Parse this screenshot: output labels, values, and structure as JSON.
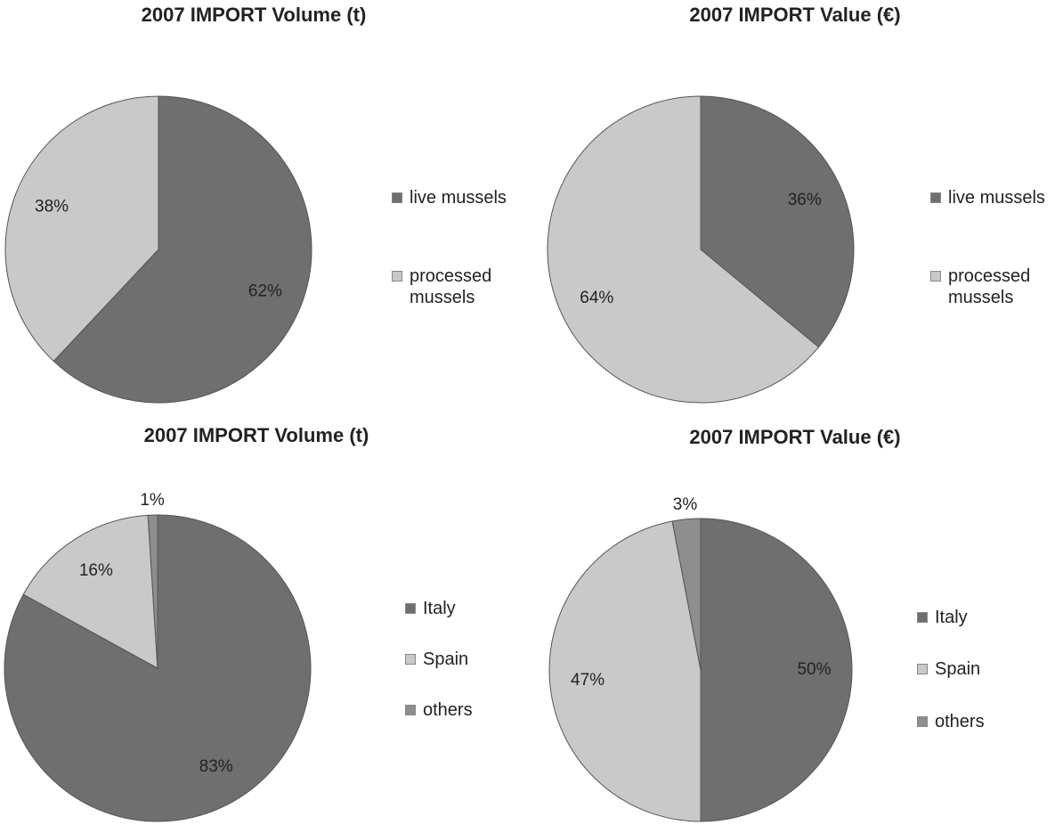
{
  "chart_data": [
    {
      "type": "pie",
      "title": "2007 IMPORT Volume (t)",
      "categories": [
        "live mussels",
        "processed mussels"
      ],
      "values": [
        62,
        38
      ],
      "colors": [
        "#6f6f6f",
        "#c9c9c9"
      ],
      "legend": "right"
    },
    {
      "type": "pie",
      "title": "2007 IMPORT Value (€)",
      "categories": [
        "live mussels",
        "processed mussels"
      ],
      "values": [
        36,
        64
      ],
      "colors": [
        "#6f6f6f",
        "#c9c9c9"
      ],
      "legend": "right"
    },
    {
      "type": "pie",
      "title": "2007 IMPORT Volume (t)",
      "categories": [
        "Italy",
        "Spain",
        "others"
      ],
      "values": [
        83,
        16,
        1
      ],
      "colors": [
        "#6f6f6f",
        "#c9c9c9",
        "#8e8e8e"
      ],
      "legend": "right"
    },
    {
      "type": "pie",
      "title": "2007 IMPORT Value (€)",
      "categories": [
        "Italy",
        "Spain",
        "others"
      ],
      "values": [
        50,
        47,
        3
      ],
      "colors": [
        "#6f6f6f",
        "#c9c9c9",
        "#8e8e8e"
      ],
      "legend": "right"
    }
  ]
}
